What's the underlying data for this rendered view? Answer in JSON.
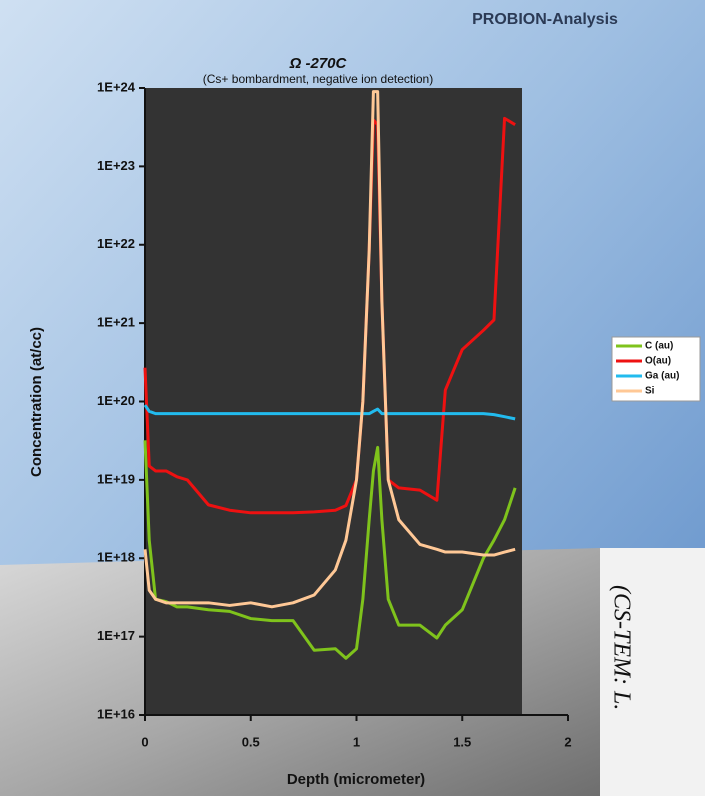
{
  "chart_data": {
    "type": "line",
    "brand": "PROBION-Analysis",
    "title": "Ω -270C",
    "subtitle": "(Cs+ bombardment, negative ion detection)",
    "x_label": "Depth (micrometer)",
    "y_label": "Concentration (at/cc)",
    "side_note": "(CS-TEM: L.",
    "log_y": true,
    "xlim": [
      0,
      2
    ],
    "xticks": [
      0,
      0.5,
      1,
      1.5,
      2
    ],
    "ylim": [
      1e+16,
      1e+24
    ],
    "yticks": [
      {
        "value": 1e+16,
        "label": "1E+16"
      },
      {
        "value": 1e+17,
        "label": "1E+17"
      },
      {
        "value": 1e+18,
        "label": "1E+18"
      },
      {
        "value": 1e+19,
        "label": "1E+19"
      },
      {
        "value": 1e+20,
        "label": "1E+20"
      },
      {
        "value": 1e+21,
        "label": "1E+21"
      },
      {
        "value": 1e+22,
        "label": "1E+22"
      },
      {
        "value": 1e+23,
        "label": "1E+23"
      },
      {
        "value": 1e+24,
        "label": "1E+24"
      }
    ],
    "x": [
      0,
      0.02,
      0.05,
      0.1,
      0.15,
      0.2,
      0.3,
      0.4,
      0.5,
      0.6,
      0.7,
      0.8,
      0.9,
      0.95,
      1.0,
      1.03,
      1.06,
      1.08,
      1.1,
      1.12,
      1.15,
      1.2,
      1.3,
      1.38,
      1.42,
      1.5,
      1.6,
      1.65,
      1.7,
      1.75
    ],
    "series": [
      {
        "name": "C (au)",
        "color": "#7fc31c",
        "values": [
          3.2e+19,
          1.7e+18,
          3e+17,
          2.8e+17,
          2.4e+17,
          2.4e+17,
          2.2e+17,
          2.1e+17,
          1.7e+17,
          1.6e+17,
          1.6e+17,
          6.7e+16,
          7e+16,
          5.3e+16,
          7e+16,
          3e+17,
          3.1e+18,
          1.3e+19,
          2.6e+19,
          3.1e+18,
          3e+17,
          1.4e+17,
          1.4e+17,
          9.6e+16,
          1.4e+17,
          2.2e+17,
          1e+18,
          1.7e+18,
          3.1e+18,
          7.9e+18
        ]
      },
      {
        "name": "O(au)",
        "color": "#ee1111",
        "values": [
          2.7e+20,
          1.5e+19,
          1.3e+19,
          1.3e+19,
          1.1e+19,
          1e+19,
          4.8e+18,
          4.1e+18,
          3.8e+18,
          3.8e+18,
          3.8e+18,
          3.9e+18,
          4.1e+18,
          4.7e+18,
          1e+19,
          1e+20,
          8.5e+21,
          3.9e+23,
          3.4e+23,
          1.9e+21,
          1e+19,
          7.9e+18,
          7.4e+18,
          5.5e+18,
          1.4e+20,
          4.6e+20,
          8.1e+20,
          1.1e+21,
          4.1e+23,
          3.4e+23
        ]
      },
      {
        "name": "Ga (au)",
        "color": "#22bbee",
        "values": [
          9e+19,
          7.5e+19,
          7e+19,
          7e+19,
          7e+19,
          7e+19,
          7e+19,
          7e+19,
          7e+19,
          7e+19,
          7e+19,
          7e+19,
          7e+19,
          7e+19,
          7e+19,
          7e+19,
          7e+19,
          7.5e+19,
          8e+19,
          7e+19,
          7e+19,
          7e+19,
          7e+19,
          7e+19,
          7e+19,
          7e+19,
          7e+19,
          6.8e+19,
          6.4e+19,
          6e+19
        ]
      },
      {
        "name": "Si",
        "color": "#ffc896",
        "values": [
          1.3e+18,
          3.9e+17,
          3e+17,
          2.7e+17,
          2.7e+17,
          2.7e+17,
          2.7e+17,
          2.5e+17,
          2.7e+17,
          2.4e+17,
          2.7e+17,
          3.4e+17,
          7.1e+17,
          1.7e+18,
          1e+19,
          1e+20,
          8.5e+21,
          9e+23,
          9e+23,
          1.9e+21,
          1e+19,
          3.1e+18,
          1.5e+18,
          1.3e+18,
          1.2e+18,
          1.2e+18,
          1.1e+18,
          1.1e+18,
          1.2e+18,
          1.3e+18
        ]
      }
    ]
  }
}
